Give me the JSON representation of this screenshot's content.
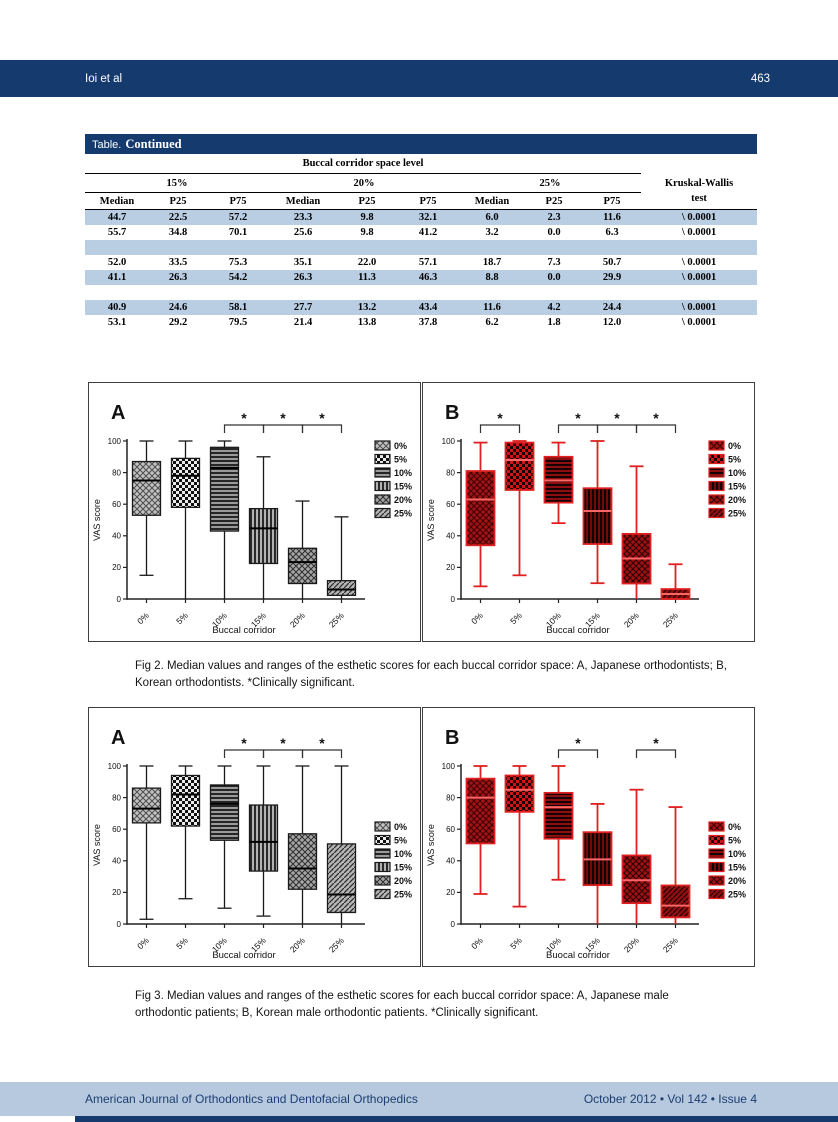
{
  "header": {
    "authors": "Ioi et al",
    "page_number": "463"
  },
  "table": {
    "title_label": "Table.",
    "title_continued": "Continued",
    "span_header": "Buccal corridor space level",
    "group_headers": [
      "15%",
      "20%",
      "25%"
    ],
    "kw_header_line1": "Kruskal-Wallis",
    "kw_header_line2": "test",
    "sub_headers": [
      "Median",
      "P25",
      "P75",
      "Median",
      "P25",
      "P75",
      "Median",
      "P25",
      "P75"
    ],
    "rows": [
      {
        "shaded": true,
        "cells": [
          "44.7",
          "22.5",
          "57.2",
          "23.3",
          "9.8",
          "32.1",
          "6.0",
          "2.3",
          "11.6",
          "\\ 0.0001"
        ]
      },
      {
        "shaded": false,
        "cells": [
          "55.7",
          "34.8",
          "70.1",
          "25.6",
          "9.8",
          "41.2",
          "3.2",
          "0.0",
          "6.3",
          "\\ 0.0001"
        ]
      },
      {
        "shaded": true,
        "cells": []
      },
      {
        "shaded": false,
        "cells": [
          "52.0",
          "33.5",
          "75.3",
          "35.1",
          "22.0",
          "57.1",
          "18.7",
          "7.3",
          "50.7",
          "\\ 0.0001"
        ]
      },
      {
        "shaded": true,
        "cells": [
          "41.1",
          "26.3",
          "54.2",
          "26.3",
          "11.3",
          "46.3",
          "8.8",
          "0.0",
          "29.9",
          "\\ 0.0001"
        ]
      },
      {
        "shaded": false,
        "cells": []
      },
      {
        "shaded": true,
        "cells": [
          "40.9",
          "24.6",
          "58.1",
          "27.7",
          "13.2",
          "43.4",
          "11.6",
          "4.2",
          "24.4",
          "\\ 0.0001"
        ]
      },
      {
        "shaded": false,
        "cells": [
          "53.1",
          "29.2",
          "79.5",
          "21.4",
          "13.8",
          "37.8",
          "6.2",
          "1.8",
          "12.0",
          "\\ 0.0001"
        ]
      }
    ]
  },
  "figures": {
    "fig2_caption": "Fig 2. Median values and ranges of the esthetic scores for each buccal corridor space: A, Japanese orthodontists; B, Korean orthodontists. *Clinically significant.",
    "fig3_caption": "Fig 3. Median values and ranges of the esthetic scores for each buccal corridor space: A, Japanese male orthodontic patients; B, Korean male orthodontic patients. *Clinically significant."
  },
  "footer": {
    "journal": "American Journal of Orthodontics and Dentofacial Orthopedics",
    "issue": "October 2012 • Vol 142 • Issue 4"
  },
  "colors": {
    "navy": "#143a6e",
    "row_shade": "#b9cde3",
    "footer_band": "#b7c9de",
    "gray_stroke": "#1a1a1a",
    "red_stroke": "#e02020",
    "red_median": "#ff6666"
  },
  "chart_data": [
    {
      "id": "fig2A",
      "type": "box",
      "panel_label": "A",
      "color_scheme": "gray",
      "xlabel": "Buccal corridor",
      "ylabel": "VAS score",
      "ylim": [
        0,
        100
      ],
      "yticks": [
        0,
        20,
        40,
        60,
        80,
        100
      ],
      "categories": [
        "0%",
        "5%",
        "10%",
        "15%",
        "20%",
        "25%"
      ],
      "legend": [
        "0%",
        "5%",
        "10%",
        "15%",
        "20%",
        "25%"
      ],
      "legend_pos": "top-right",
      "boxes": [
        {
          "low": 15,
          "q1": 53,
          "median": 75,
          "q3": 87,
          "high": 100
        },
        {
          "low": 0,
          "q1": 58,
          "median": 78,
          "q3": 89,
          "high": 100
        },
        {
          "low": 0,
          "q1": 43,
          "median": 83,
          "q3": 96,
          "high": 100
        },
        {
          "low": 0,
          "q1": 22.5,
          "median": 44.7,
          "q3": 57.2,
          "high": 90
        },
        {
          "low": 0,
          "q1": 9.8,
          "median": 23.3,
          "q3": 32.1,
          "high": 62
        },
        {
          "low": 0,
          "q1": 2.3,
          "median": 6.0,
          "q3": 11.6,
          "high": 52
        }
      ],
      "significance_brackets": [
        [
          2,
          3
        ],
        [
          3,
          4
        ],
        [
          4,
          5
        ]
      ],
      "significance_symbol": "*"
    },
    {
      "id": "fig2B",
      "type": "box",
      "panel_label": "B",
      "color_scheme": "red",
      "xlabel": "Buccal corridor",
      "ylabel": "VAS score",
      "ylim": [
        0,
        100
      ],
      "yticks": [
        0,
        20,
        40,
        60,
        80,
        100
      ],
      "categories": [
        "0%",
        "5%",
        "10%",
        "15%",
        "20%",
        "25%"
      ],
      "legend": [
        "0%",
        "5%",
        "10%",
        "15%",
        "20%",
        "25%"
      ],
      "legend_pos": "top-right",
      "boxes": [
        {
          "low": 8,
          "q1": 34,
          "median": 63,
          "q3": 81,
          "high": 99
        },
        {
          "low": 15,
          "q1": 69,
          "median": 88,
          "q3": 99,
          "high": 100
        },
        {
          "low": 48,
          "q1": 61,
          "median": 75,
          "q3": 90,
          "high": 99
        },
        {
          "low": 10,
          "q1": 34.8,
          "median": 55.7,
          "q3": 70.1,
          "high": 100
        },
        {
          "low": 0,
          "q1": 9.8,
          "median": 25.6,
          "q3": 41.2,
          "high": 84
        },
        {
          "low": 0,
          "q1": 0.0,
          "median": 3.2,
          "q3": 6.3,
          "high": 22
        }
      ],
      "significance_brackets": [
        [
          0,
          1
        ],
        [
          2,
          3
        ],
        [
          3,
          4
        ],
        [
          4,
          5
        ]
      ],
      "significance_symbol": "*"
    },
    {
      "id": "fig3A",
      "type": "box",
      "panel_label": "A",
      "color_scheme": "gray",
      "xlabel": "Buccal corridor",
      "ylabel": "VAS score",
      "ylim": [
        0,
        100
      ],
      "yticks": [
        0,
        20,
        40,
        60,
        80,
        100
      ],
      "categories": [
        "0%",
        "5%",
        "10%",
        "15%",
        "20%",
        "25%"
      ],
      "legend": [
        "0%",
        "5%",
        "10%",
        "15%",
        "20%",
        "25%"
      ],
      "legend_pos": "mid-right",
      "boxes": [
        {
          "low": 3,
          "q1": 64,
          "median": 73,
          "q3": 86,
          "high": 100
        },
        {
          "low": 16,
          "q1": 62,
          "median": 82,
          "q3": 94,
          "high": 100
        },
        {
          "low": 10,
          "q1": 53,
          "median": 76,
          "q3": 88,
          "high": 100
        },
        {
          "low": 5,
          "q1": 33.5,
          "median": 52.0,
          "q3": 75.3,
          "high": 100
        },
        {
          "low": 0,
          "q1": 22.0,
          "median": 35.1,
          "q3": 57.1,
          "high": 100
        },
        {
          "low": 0,
          "q1": 7.3,
          "median": 18.7,
          "q3": 50.7,
          "high": 100
        }
      ],
      "significance_brackets": [
        [
          2,
          3
        ],
        [
          3,
          4
        ],
        [
          4,
          5
        ]
      ],
      "significance_symbol": "*"
    },
    {
      "id": "fig3B",
      "type": "box",
      "panel_label": "B",
      "color_scheme": "red",
      "xlabel": "Buocal corridor",
      "ylabel": "VAS score",
      "ylim": [
        0,
        100
      ],
      "yticks": [
        0,
        20,
        40,
        60,
        80,
        100
      ],
      "categories": [
        "0%",
        "5%",
        "10%",
        "15%",
        "20%",
        "25%"
      ],
      "legend": [
        "0%",
        "5%",
        "10%",
        "15%",
        "20%",
        "25%"
      ],
      "legend_pos": "mid-right",
      "boxes": [
        {
          "low": 19,
          "q1": 51,
          "median": 80,
          "q3": 92,
          "high": 100
        },
        {
          "low": 11,
          "q1": 71,
          "median": 85,
          "q3": 94,
          "high": 100
        },
        {
          "low": 28,
          "q1": 54,
          "median": 74,
          "q3": 83,
          "high": 100
        },
        {
          "low": 0,
          "q1": 24.6,
          "median": 40.9,
          "q3": 58.1,
          "high": 76
        },
        {
          "low": 0,
          "q1": 13.2,
          "median": 27.7,
          "q3": 43.4,
          "high": 85
        },
        {
          "low": 0,
          "q1": 4.2,
          "median": 11.6,
          "q3": 24.4,
          "high": 74
        }
      ],
      "significance_brackets": [
        [
          2,
          3
        ],
        [
          4,
          5
        ]
      ],
      "significance_symbol": "*"
    }
  ]
}
